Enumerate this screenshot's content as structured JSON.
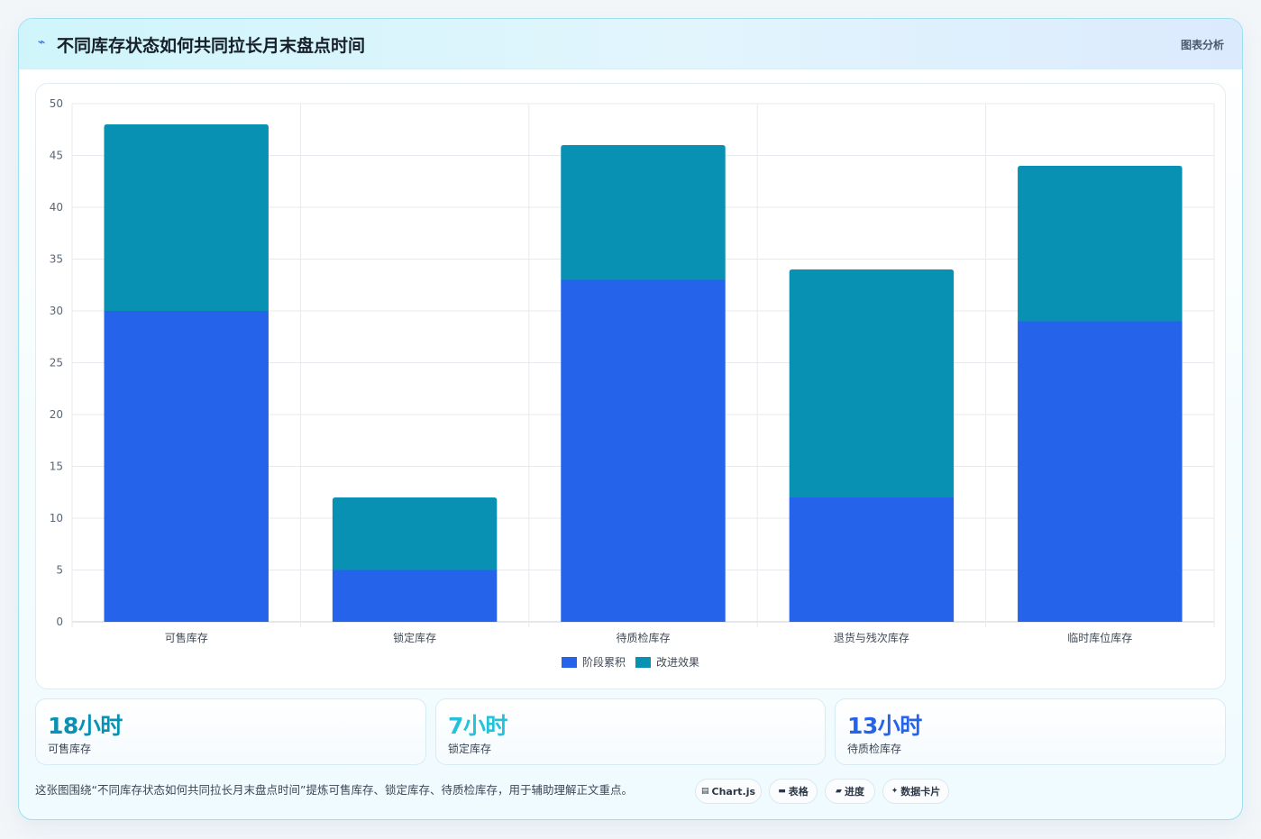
{
  "header": {
    "icon": "pulse-icon",
    "title": "不同库存状态如何共同拉长月末盘点时间",
    "tag": "图表分析"
  },
  "chart_data": {
    "type": "bar",
    "stacked": true,
    "categories": [
      "可售库存",
      "锁定库存",
      "待质检库存",
      "退货与残次库存",
      "临时库位库存"
    ],
    "series": [
      {
        "name": "阶段累积",
        "color": "#2563eb",
        "values": [
          30,
          5,
          33,
          12,
          29
        ]
      },
      {
        "name": "改进效果",
        "color": "#0891b2",
        "values": [
          18,
          7,
          13,
          22,
          15
        ]
      }
    ],
    "ylim": [
      0,
      50
    ],
    "yticks": [
      0,
      5,
      10,
      15,
      20,
      25,
      30,
      35,
      40,
      45,
      50
    ],
    "grid": true,
    "legend": "bottom"
  },
  "stats": [
    {
      "value": "18小时",
      "label": "可售库存",
      "color": "#0891b2"
    },
    {
      "value": "7小时",
      "label": "锁定库存",
      "color": "#22c3d8"
    },
    {
      "value": "13小时",
      "label": "待质检库存",
      "color": "#2563eb"
    }
  ],
  "footnote": "这张图围绕“不同库存状态如何共同拉长月末盘点时间”提炼可售库存、锁定库存、待质检库存，用于辅助理解正文重点。",
  "pills": [
    {
      "icon": "chart-icon",
      "glyph": "▤",
      "label": "Chart.js"
    },
    {
      "icon": "table-icon",
      "glyph": "▬",
      "label": "表格"
    },
    {
      "icon": "progress-icon",
      "glyph": "▰",
      "label": "进度"
    },
    {
      "icon": "sparkle-icon",
      "glyph": "✦",
      "label": "数据卡片"
    }
  ]
}
